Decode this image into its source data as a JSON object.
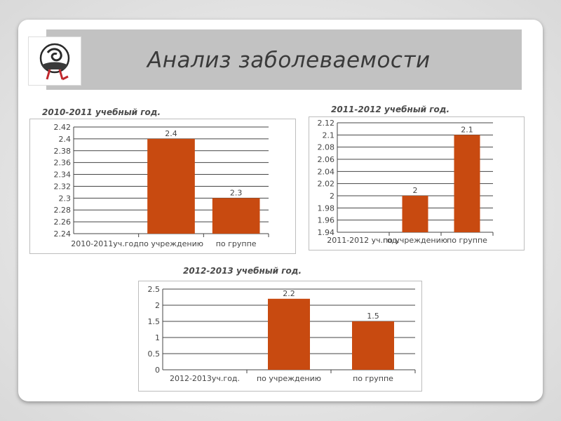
{
  "page": {
    "title": "Анализ заболеваемости"
  },
  "colors": {
    "bar": "#c84a10",
    "title_bar": "#c2c2c2"
  },
  "logo": {
    "icon": "stork-emblem-icon"
  },
  "chart_data": [
    {
      "type": "bar",
      "title": "2010-2011 учебный год.",
      "categories": [
        "2010-2011уч.год.",
        "по учреждению",
        "по группе"
      ],
      "values": [
        null,
        2.4,
        2.3
      ],
      "data_labels": [
        "",
        "2.4",
        "2.3"
      ],
      "ylim": [
        2.24,
        2.42
      ],
      "yticks": [
        "2.24",
        "2.26",
        "2.28",
        "2.3",
        "2.32",
        "2.34",
        "2.36",
        "2.38",
        "2.4",
        "2.42"
      ],
      "grid": true
    },
    {
      "type": "bar",
      "title": "2011-2012 учебный год.",
      "categories": [
        "2011-2012 уч.год.",
        "по учреждению",
        "по группе"
      ],
      "values": [
        null,
        2.0,
        2.1
      ],
      "data_labels": [
        "",
        "2",
        "2.1"
      ],
      "ylim": [
        1.94,
        2.12
      ],
      "yticks": [
        "1.94",
        "1.96",
        "1.98",
        "2",
        "2.02",
        "2.04",
        "2.06",
        "2.08",
        "2.1",
        "2.12"
      ],
      "grid": true
    },
    {
      "type": "bar",
      "title": "2012-2013 учебный год.",
      "categories": [
        "2012-2013уч.год.",
        "по учреждению",
        "по группе"
      ],
      "values": [
        null,
        2.2,
        1.5
      ],
      "data_labels": [
        "",
        "2.2",
        "1.5"
      ],
      "ylim": [
        0,
        2.5
      ],
      "yticks": [
        "0",
        "0.5",
        "1",
        "1.5",
        "2",
        "2.5"
      ],
      "grid": true
    }
  ]
}
